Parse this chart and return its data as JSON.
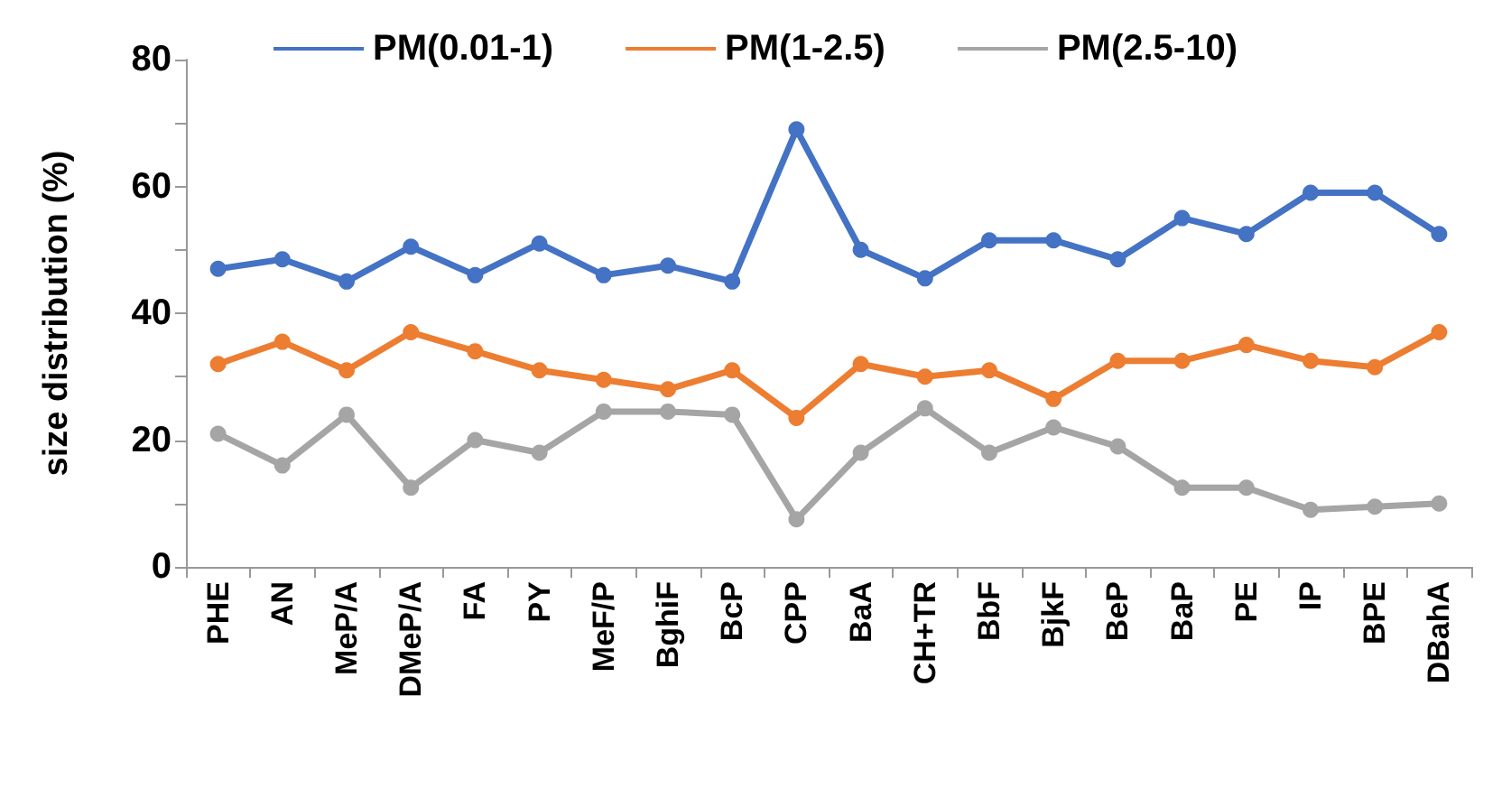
{
  "chart_data": {
    "type": "line",
    "ylabel": "size distribution (%)",
    "categories": [
      "PHE",
      "AN",
      "MeP/A",
      "DMeP/A",
      "FA",
      "PY",
      "MeF/P",
      "BghiF",
      "BcP",
      "CPP",
      "BaA",
      "CH+TR",
      "BbF",
      "BjkF",
      "BeP",
      "BaP",
      "PE",
      "IP",
      "BPE",
      "DBahA"
    ],
    "series": [
      {
        "name": "PM(0.01-1)",
        "color": "#4472c4",
        "values": [
          47,
          48.5,
          45,
          50.5,
          46,
          51,
          46,
          47.5,
          45,
          69,
          50,
          45.5,
          51.5,
          51.5,
          48.5,
          55,
          52.5,
          59,
          59,
          52.5
        ]
      },
      {
        "name": "PM(1-2.5)",
        "color": "#ed7d31",
        "values": [
          32,
          35.5,
          31,
          37,
          34,
          31,
          29.5,
          28,
          31,
          23.5,
          32,
          30,
          31,
          26.5,
          32.5,
          32.5,
          35,
          32.5,
          31.5,
          37
        ]
      },
      {
        "name": "PM(2.5-10)",
        "color": "#a5a5a5",
        "values": [
          21,
          16,
          24,
          12.5,
          20,
          18,
          24.5,
          24.5,
          24,
          7.5,
          18,
          25,
          18,
          22,
          19,
          12.5,
          12.5,
          9,
          9.5,
          10
        ]
      }
    ],
    "ylim": [
      0,
      80
    ],
    "yticks": [
      0,
      {
        "value": 10,
        "label": null
      },
      20,
      {
        "value": 30,
        "label": null
      },
      40,
      {
        "value": 50,
        "label": null
      },
      60,
      {
        "value": 70,
        "label": null
      },
      80
    ],
    "grid": false,
    "legend": "top",
    "marker": "circle",
    "line_style": "solid"
  }
}
